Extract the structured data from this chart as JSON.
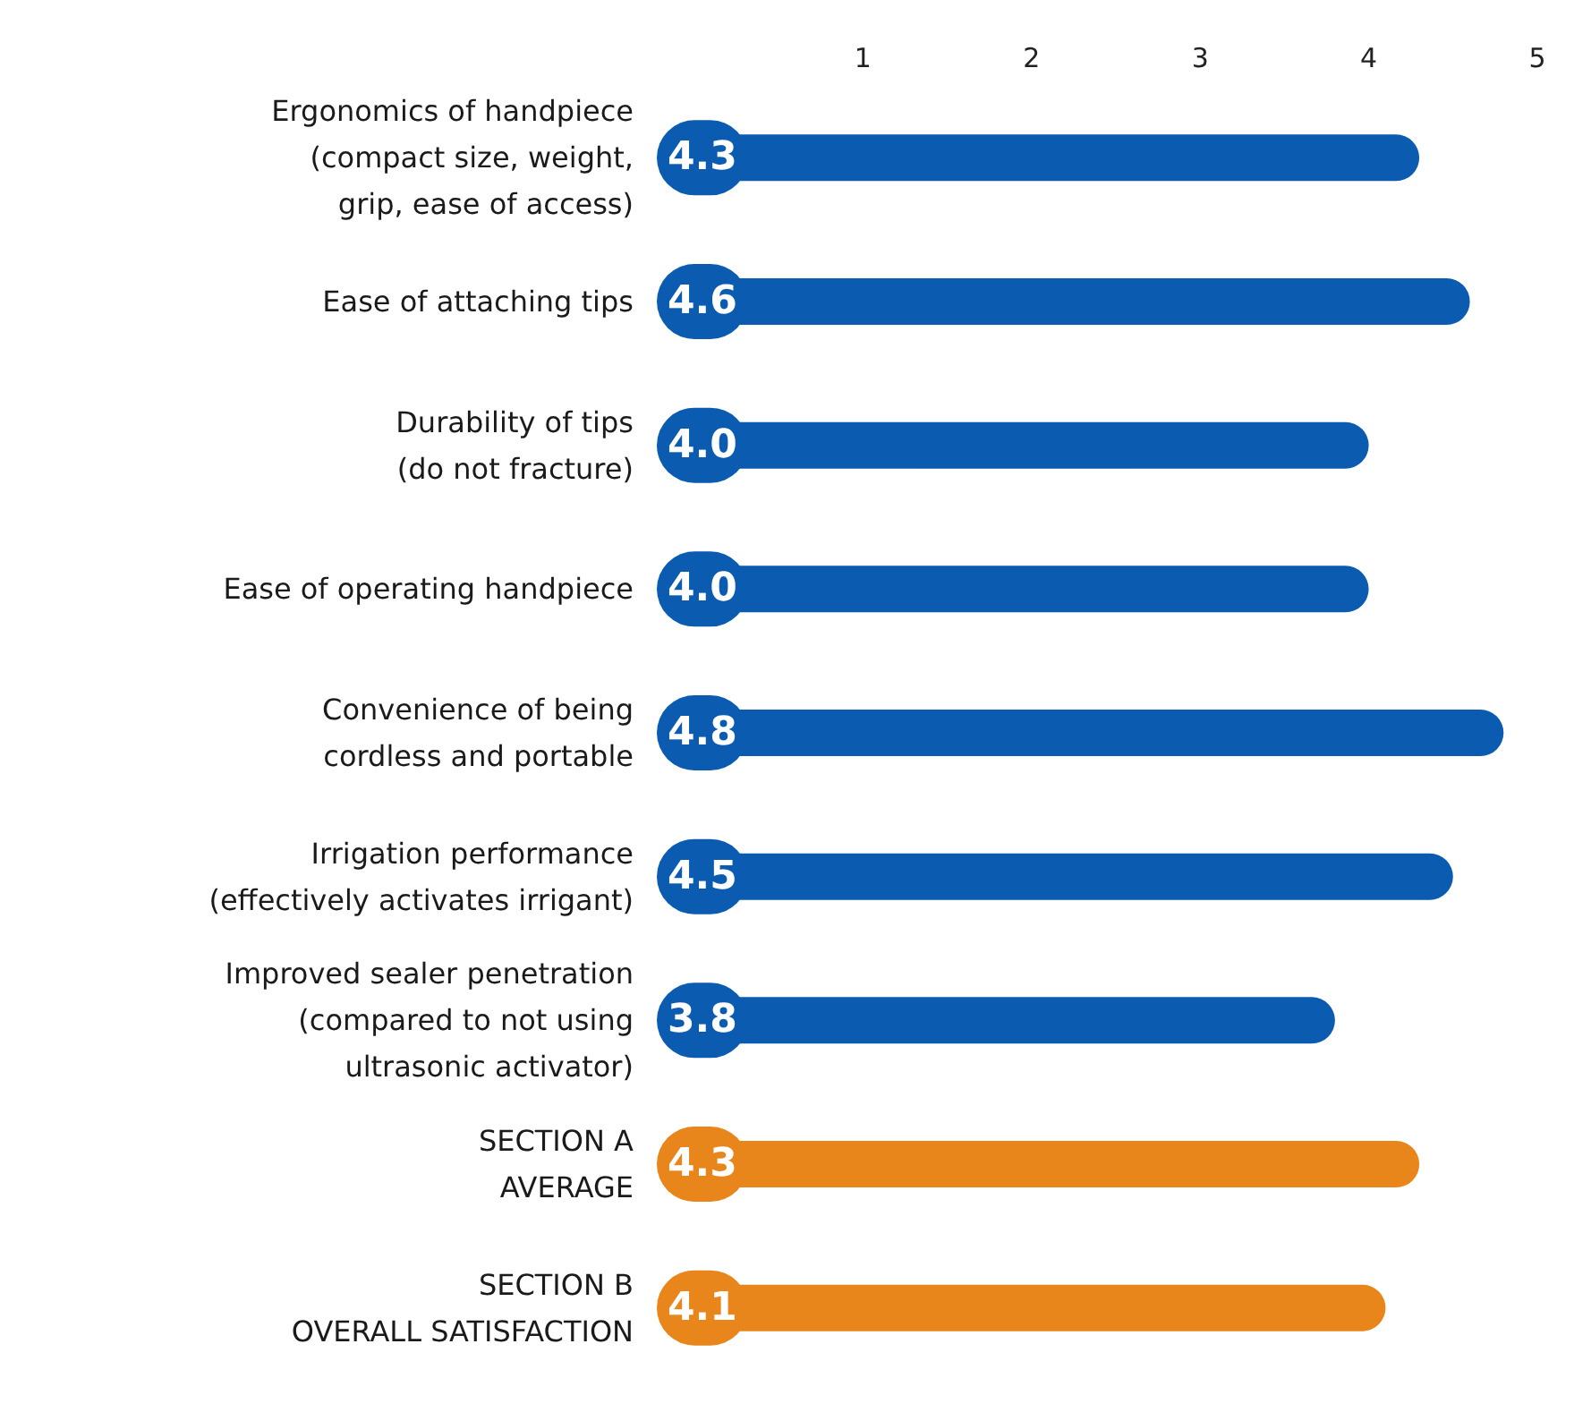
{
  "chart_data": {
    "type": "bar",
    "orientation": "horizontal",
    "categories": [
      "Ergonomics of handpiece\n(compact size, weight,\ngrip, ease of access)",
      "Ease of attaching tips",
      "Durability of tips\n(do not fracture)",
      "Ease of operating handpiece",
      "Convenience of being\ncordless and portable",
      "Irrigation performance\n(effectively activates irrigant)",
      "Improved sealer penetration\n(compared to not using\nultrasonic activator)",
      "SECTION A\nAVERAGE",
      "SECTION B\nOVERALL SATISFACTION"
    ],
    "values": [
      4.3,
      4.6,
      4.0,
      4.0,
      4.8,
      4.5,
      3.8,
      4.3,
      4.1
    ],
    "value_labels": [
      "4.3",
      "4.6",
      "4.0",
      "4.0",
      "4.8",
      "4.5",
      "3.8",
      "4.3",
      "4.1"
    ],
    "colors": [
      "#0b5cb0",
      "#0b5cb0",
      "#0b5cb0",
      "#0b5cb0",
      "#0b5cb0",
      "#0b5cb0",
      "#0b5cb0",
      "#e8861c",
      "#e8861c"
    ],
    "xlim": [
      0,
      5
    ],
    "xticks": [
      1,
      2,
      3,
      4,
      5
    ],
    "grid": false
  }
}
